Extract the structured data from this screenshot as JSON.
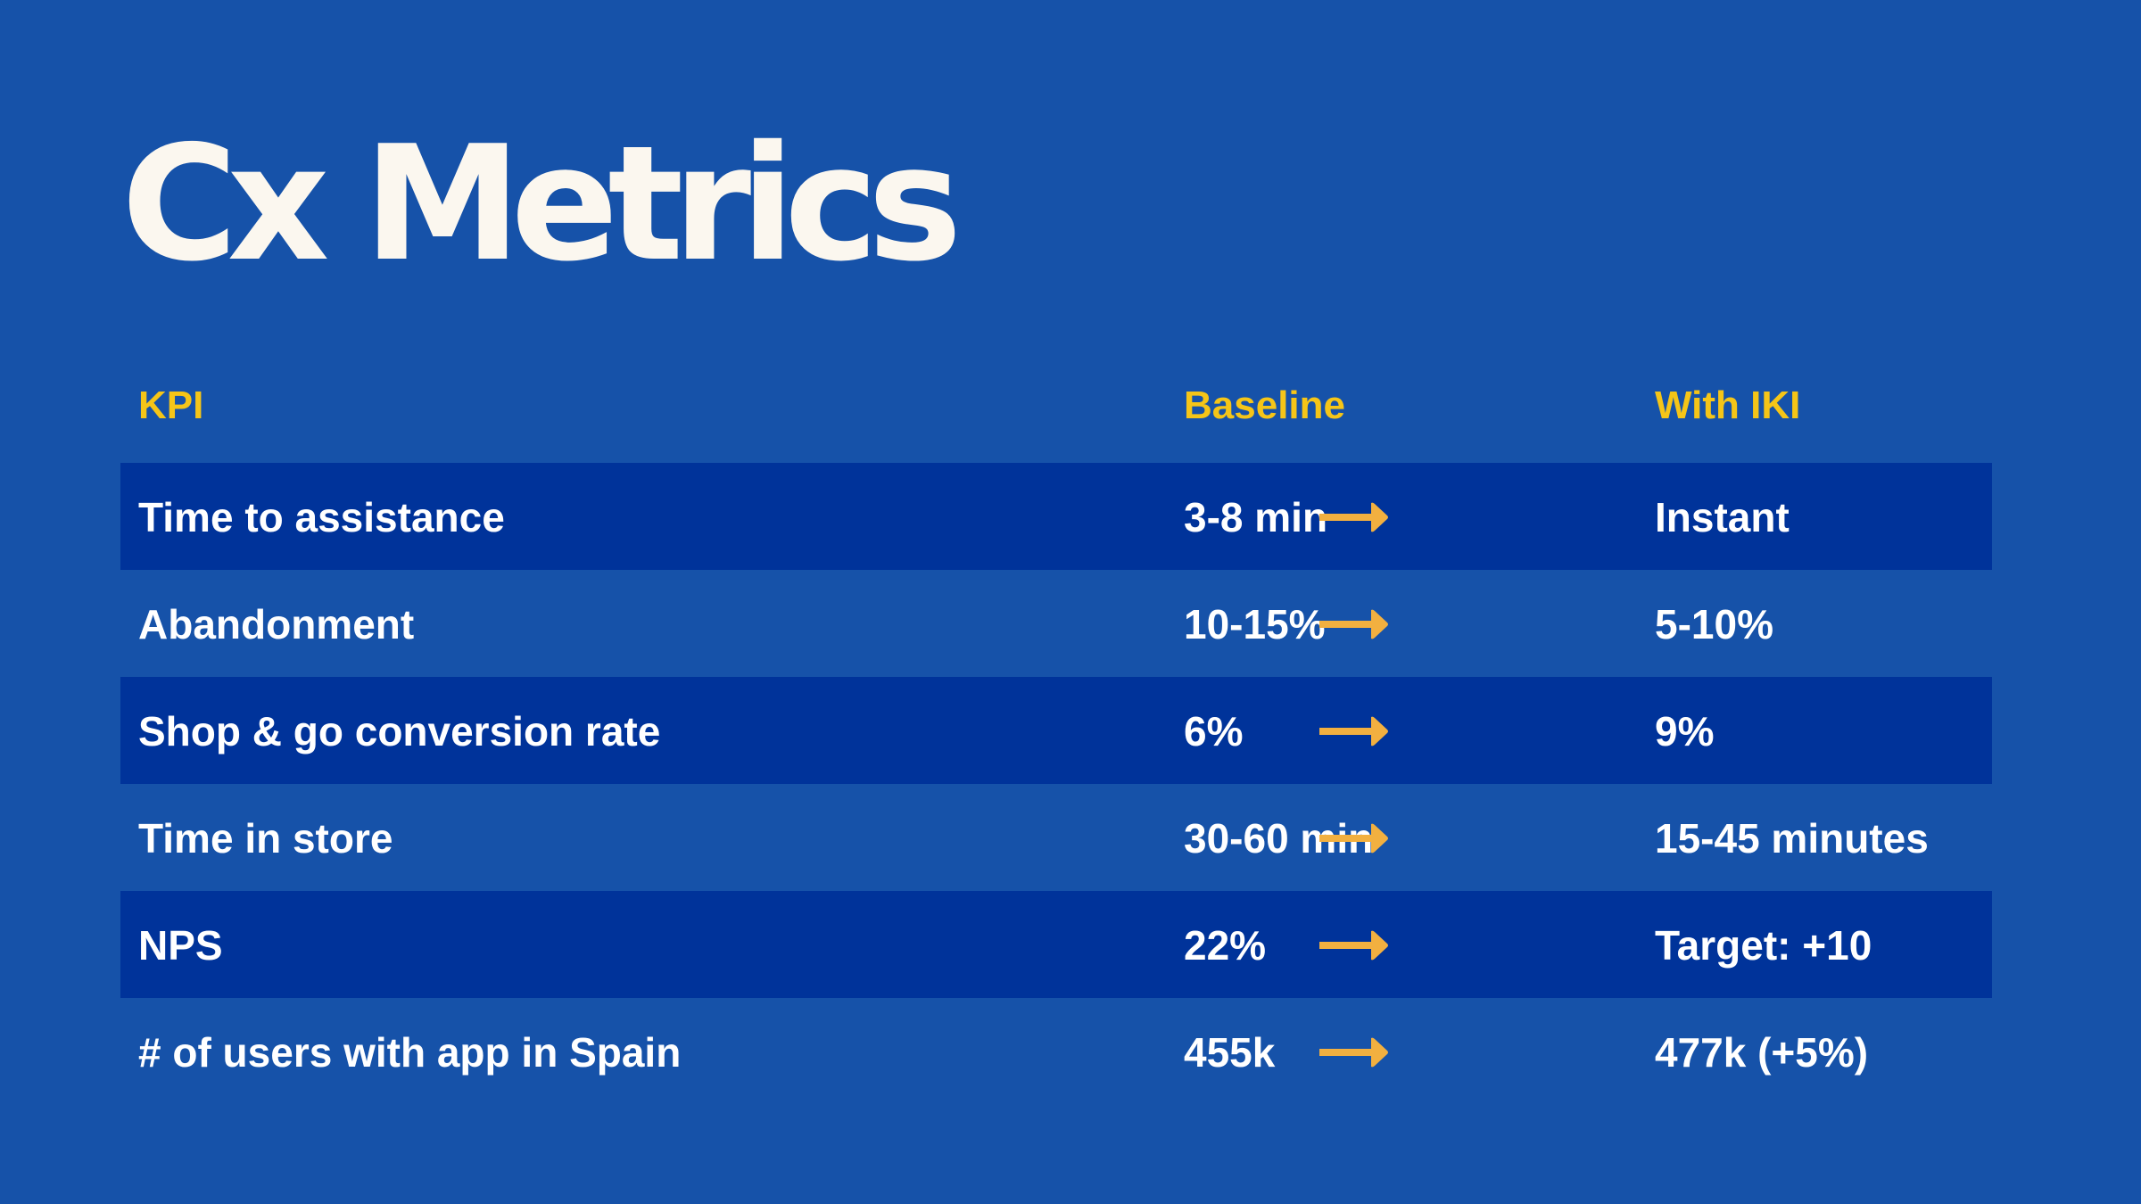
{
  "title": "Cx Metrics",
  "colors": {
    "background": "#1652a9",
    "row_dark": "#00339a",
    "header_text": "#f5c518",
    "arrow": "#f2b040"
  },
  "table": {
    "headers": [
      "KPI",
      "Baseline",
      "With IKI"
    ],
    "rows": [
      {
        "kpi": "Time to assistance",
        "baseline": "3-8 min",
        "with_iki": "Instant"
      },
      {
        "kpi": "Abandonment",
        "baseline": "10-15%",
        "with_iki": "5-10%"
      },
      {
        "kpi": "Shop & go conversion rate",
        "baseline": "6%",
        "with_iki": "9%"
      },
      {
        "kpi": "Time in store",
        "baseline": "30-60 min",
        "with_iki": "15-45 minutes"
      },
      {
        "kpi": "NPS",
        "baseline": "22%",
        "with_iki": "Target: +10"
      },
      {
        "kpi": "# of users with app in Spain",
        "baseline": "455k",
        "with_iki": "477k (+5%)"
      }
    ]
  }
}
